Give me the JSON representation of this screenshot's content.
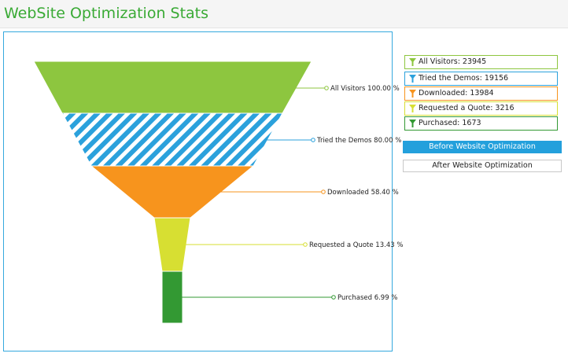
{
  "header": {
    "title": "WebSite Optimization Stats",
    "title_color": "#3aaa35"
  },
  "chart_data": {
    "type": "funnel",
    "title": "",
    "series": [
      {
        "name": "All Visitors",
        "value": 23945,
        "percent_label": "All Visitors 100.00 %",
        "color": "#8dc63f",
        "pattern": "solid"
      },
      {
        "name": "Tried the Demos",
        "value": 19156,
        "percent_label": "Tried the Demos 80.00 %",
        "color": "#2ba1dc",
        "pattern": "diagonal-stripes"
      },
      {
        "name": "Downloaded",
        "value": 13984,
        "percent_label": "Downloaded 58.40 %",
        "color": "#f7941d",
        "pattern": "solid"
      },
      {
        "name": "Requested a Quote",
        "value": 3216,
        "percent_label": "Requested a Quote 13.43 %",
        "color": "#d7df32",
        "pattern": "solid"
      },
      {
        "name": "Purchased",
        "value": 1673,
        "percent_label": "Purchased 6.99 %",
        "color": "#339933",
        "pattern": "solid"
      }
    ],
    "legend_placement": "right"
  },
  "legend": {
    "items": [
      {
        "label": "All Visitors: 23945",
        "icon": "funnel-icon",
        "color": "#8dc63f",
        "border": "#8dc63f"
      },
      {
        "label": "Tried the Demos: 19156",
        "icon": "funnel-icon",
        "color": "#2ba1dc",
        "border": "#2ba1dc"
      },
      {
        "label": "Downloaded: 13984",
        "icon": "funnel-icon",
        "color": "#f7941d",
        "border": "#f7941d"
      },
      {
        "label": "Requested a Quote: 3216",
        "icon": "funnel-icon",
        "color": "#d7df32",
        "border": "#d7df32"
      },
      {
        "label": "Purchased: 1673",
        "icon": "funnel-icon",
        "color": "#339933",
        "border": "#339933"
      }
    ]
  },
  "buttons": {
    "before_label": "Before Website Optimization",
    "after_label": "After Website Optimization",
    "active": "before"
  }
}
